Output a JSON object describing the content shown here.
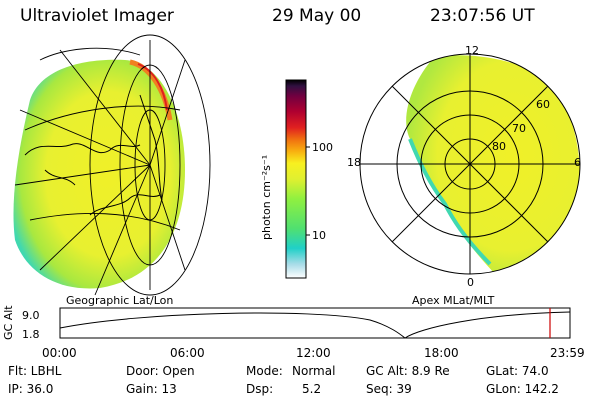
{
  "header": {
    "instrument": "Ultraviolet Imager",
    "date": "29 May 00",
    "time": "23:07:56 UT"
  },
  "left_panel": {
    "caption": "Geographic Lat/Lon"
  },
  "right_panel": {
    "caption": "Apex MLat/MLT",
    "mlt_labels": {
      "top": "12",
      "left": "18",
      "right": "6",
      "bottom": "0"
    },
    "lat_labels": [
      "60",
      "70",
      "80"
    ]
  },
  "colorbar": {
    "unit_label": "photon cm⁻²s⁻¹",
    "ticks": [
      "100",
      "10"
    ],
    "colors": [
      "#ffffff",
      "#a8dce8",
      "#20d0c8",
      "#50e070",
      "#90f040",
      "#e0f030",
      "#f8f020",
      "#f8b010",
      "#f07010",
      "#e02020",
      "#b00030",
      "#700040",
      "#301040",
      "#000000"
    ]
  },
  "altitude_strip": {
    "axis_label": "GC Alt",
    "y_ticks": [
      "9.0",
      "1.8"
    ],
    "x_ticks": [
      "00:00",
      "06:00",
      "12:00",
      "18:00",
      "23:59"
    ],
    "marker_color": "#cc0000"
  },
  "info": {
    "col1": [
      "Flt: LBHL",
      "IP: 36.0"
    ],
    "col2": [
      "Door: Open",
      "Gain: 13"
    ],
    "col3_labels": [
      "Mode:",
      "Dsp:"
    ],
    "col3_values": [
      "Normal",
      "5.2"
    ],
    "col4": [
      "GC Alt: 8.9 Re",
      "Seq: 39"
    ],
    "col5": [
      "GLat: 74.0",
      "GLon: 142.2"
    ]
  }
}
